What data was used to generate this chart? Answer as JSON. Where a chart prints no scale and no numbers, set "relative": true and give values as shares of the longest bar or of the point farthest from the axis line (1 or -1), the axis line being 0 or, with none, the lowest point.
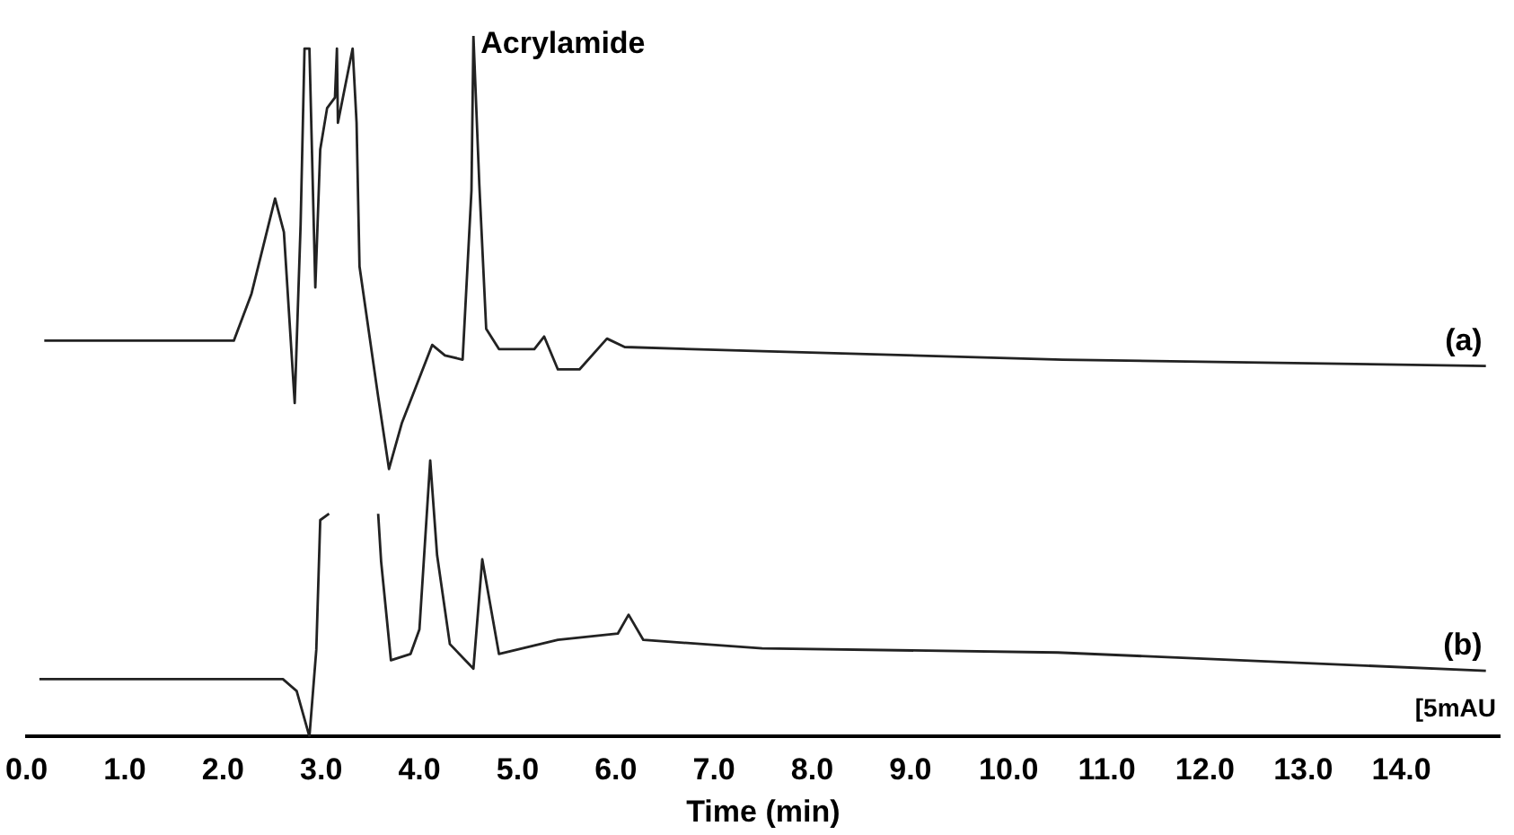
{
  "chart_data": {
    "type": "line",
    "relative": true,
    "xlabel": "Time (min)",
    "xlim": [
      0,
      15
    ],
    "xticks": [
      {
        "value": 0,
        "label": "0.0"
      },
      {
        "value": 1,
        "label": "1.0"
      },
      {
        "value": 2,
        "label": "2.0"
      },
      {
        "value": 3,
        "label": "3.0"
      },
      {
        "value": 4,
        "label": "4.0"
      },
      {
        "value": 5,
        "label": "5.0"
      },
      {
        "value": 6,
        "label": "6.0"
      },
      {
        "value": 7,
        "label": "7.0"
      },
      {
        "value": 8,
        "label": "8.0"
      },
      {
        "value": 9,
        "label": "9.0"
      },
      {
        "value": 10,
        "label": "10.0"
      },
      {
        "value": 11,
        "label": "11.0"
      },
      {
        "value": 12,
        "label": "12.0"
      },
      {
        "value": 13,
        "label": "13.0"
      },
      {
        "value": 14,
        "label": "14.0"
      }
    ],
    "tick_labels": "x",
    "legend": false,
    "annotations": [
      {
        "text": "Acrylamide",
        "x": 4.55,
        "y": 1.0
      },
      "[5mAU"
    ],
    "series": [
      {
        "name": "(a)",
        "color": "#222222",
        "x": [
          0.18,
          2.11,
          2.29,
          2.53,
          2.62,
          2.73,
          2.79,
          2.83,
          2.88,
          2.94,
          2.99,
          3.06,
          3.14,
          3.16,
          3.17,
          3.32,
          3.36,
          3.39,
          3.58,
          3.69,
          3.82,
          4.13,
          4.26,
          4.44,
          4.53,
          4.55,
          4.61,
          4.68,
          4.81,
          5.17,
          5.27,
          5.41,
          5.63,
          5.91,
          6.09,
          7.49,
          10.55,
          14.86
        ],
        "values": [
          0.565,
          0.565,
          0.632,
          0.768,
          0.72,
          0.476,
          0.73,
          0.982,
          0.982,
          0.641,
          0.838,
          0.897,
          0.912,
          0.982,
          0.876,
          0.982,
          0.876,
          0.671,
          0.485,
          0.382,
          0.447,
          0.559,
          0.544,
          0.538,
          0.779,
          1.0,
          0.788,
          0.582,
          0.553,
          0.553,
          0.571,
          0.524,
          0.524,
          0.568,
          0.556,
          0.55,
          0.538,
          0.529
        ]
      },
      {
        "name": "(b)",
        "color": "#222222",
        "x": [
          0.13,
          2.61,
          2.75,
          2.88,
          2.95,
          2.99,
          3.08,
          3.3,
          3.58,
          3.61,
          3.71,
          3.91,
          4.0,
          4.11,
          4.18,
          4.31,
          4.55,
          4.64,
          4.81,
          5.41,
          6.02,
          6.13,
          6.28,
          7.49,
          10.5,
          14.86
        ],
        "values": [
          0.082,
          0.082,
          0.065,
          0,
          0.124,
          0.309,
          0.318,
          null,
          0.318,
          0.25,
          0.109,
          0.118,
          0.153,
          0.394,
          0.259,
          0.132,
          0.097,
          0.253,
          0.118,
          0.138,
          0.147,
          0.174,
          0.138,
          0.126,
          0.12,
          0.094
        ]
      }
    ]
  }
}
